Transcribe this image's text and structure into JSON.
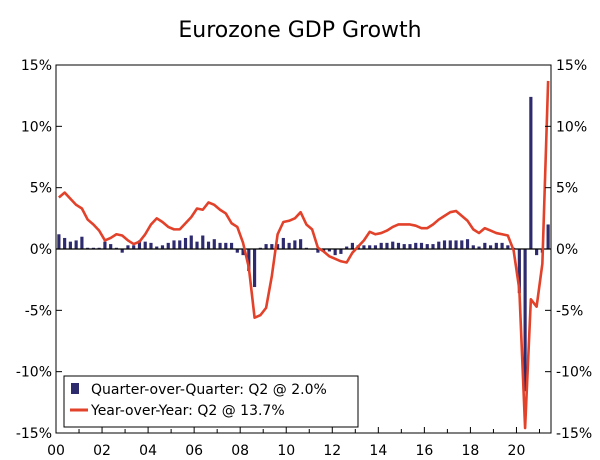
{
  "chart_data": {
    "type": "bar+line",
    "title": "Eurozone GDP Growth",
    "xlabel": "",
    "ylabel": "",
    "ylim": [
      -15,
      15
    ],
    "y_ticks": [
      15,
      10,
      5,
      0,
      -5,
      -10,
      -15
    ],
    "y_tick_labels": [
      "15%",
      "10%",
      "5%",
      "0%",
      "-5%",
      "-10%",
      "-15%"
    ],
    "x_range": [
      2000,
      2021.5
    ],
    "x_ticks": [
      2000,
      2002,
      2004,
      2006,
      2008,
      2010,
      2012,
      2014,
      2016,
      2018,
      2020
    ],
    "x_tick_labels": [
      "00",
      "02",
      "04",
      "06",
      "08",
      "10",
      "12",
      "14",
      "16",
      "18",
      "20"
    ],
    "grid": false,
    "legend_position": "bottom-left",
    "colors": {
      "bars": "#2e2a6e",
      "line": "#e2412a"
    },
    "series": [
      {
        "name": "Quarter-over-Quarter: Q2 @ 2.0%",
        "type": "bar",
        "values": [
          1.2,
          0.9,
          0.6,
          0.7,
          1.0,
          0.1,
          0.1,
          0.1,
          0.6,
          0.4,
          0.1,
          -0.3,
          0.3,
          0.3,
          0.7,
          0.6,
          0.5,
          0.2,
          0.3,
          0.5,
          0.7,
          0.7,
          0.9,
          1.1,
          0.6,
          1.1,
          0.6,
          0.8,
          0.5,
          0.5,
          0.5,
          -0.3,
          -0.5,
          -1.8,
          -3.1,
          0.1,
          0.4,
          0.4,
          0.4,
          0.9,
          0.5,
          0.7,
          0.8,
          0.1,
          0.0,
          -0.3,
          -0.2,
          -0.2,
          -0.5,
          -0.4,
          0.2,
          0.5,
          0.3,
          0.3,
          0.3,
          0.3,
          0.5,
          0.5,
          0.6,
          0.5,
          0.4,
          0.4,
          0.5,
          0.5,
          0.4,
          0.4,
          0.6,
          0.7,
          0.7,
          0.7,
          0.7,
          0.8,
          0.3,
          0.2,
          0.5,
          0.3,
          0.5,
          0.5,
          0.3,
          0.1,
          -3.6,
          -11.6,
          12.4,
          -0.5,
          -0.3,
          2.0
        ]
      },
      {
        "name": "Year-over-Year: Q2 @ 13.7%",
        "type": "line",
        "values": [
          4.2,
          4.6,
          4.1,
          3.6,
          3.3,
          2.4,
          2.0,
          1.5,
          0.7,
          0.9,
          1.2,
          1.1,
          0.7,
          0.4,
          0.6,
          1.2,
          2.0,
          2.5,
          2.2,
          1.8,
          1.6,
          1.6,
          2.1,
          2.6,
          3.3,
          3.2,
          3.8,
          3.6,
          3.2,
          2.9,
          2.1,
          1.8,
          0.5,
          -1.5,
          -5.6,
          -5.4,
          -4.8,
          -2.2,
          1.2,
          2.2,
          2.3,
          2.5,
          3.0,
          2.0,
          1.6,
          0.1,
          -0.2,
          -0.6,
          -0.8,
          -1.0,
          -1.1,
          -0.3,
          0.2,
          0.7,
          1.4,
          1.2,
          1.3,
          1.5,
          1.8,
          2.0,
          2.0,
          2.0,
          1.9,
          1.7,
          1.7,
          2.0,
          2.4,
          2.7,
          3.0,
          3.1,
          2.7,
          2.3,
          1.6,
          1.3,
          1.7,
          1.5,
          1.3,
          1.2,
          1.1,
          -0.1,
          -3.3,
          -14.6,
          -4.1,
          -4.7,
          -1.2,
          13.7
        ]
      }
    ]
  }
}
